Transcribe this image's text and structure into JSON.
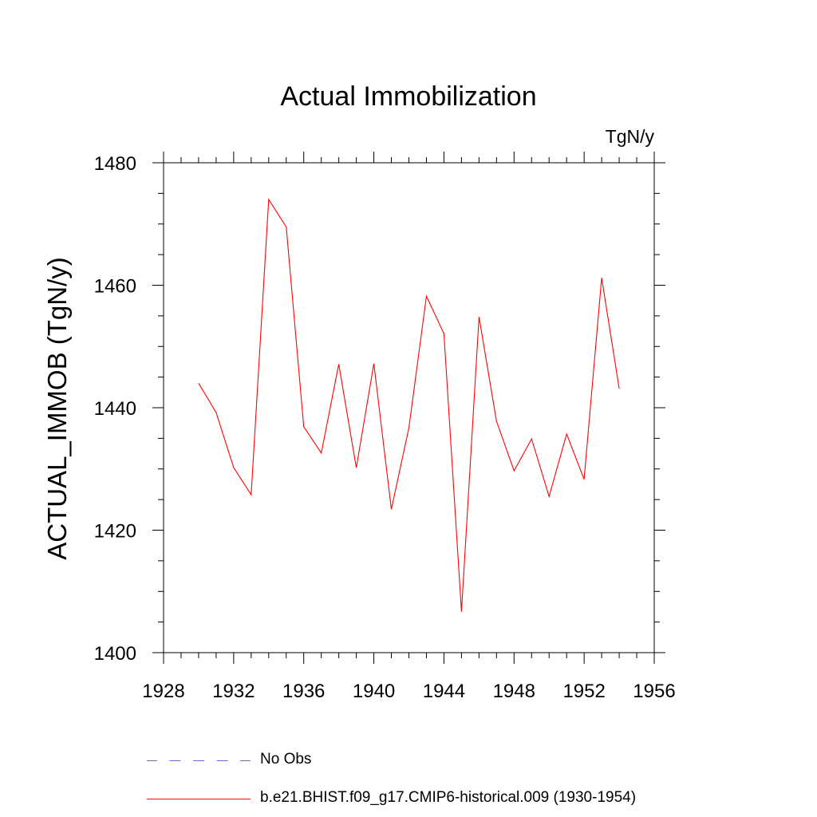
{
  "chart_data": {
    "type": "line",
    "title": "Actual Immobilization",
    "units": "TgN/y",
    "ylabel": "ACTUAL_IMMOB  (TgN/y)",
    "xlabel": "",
    "xlim": [
      1928,
      1956
    ],
    "ylim": [
      1400,
      1480
    ],
    "x_ticks": [
      1928,
      1932,
      1936,
      1940,
      1944,
      1948,
      1952,
      1956
    ],
    "y_ticks": [
      1400,
      1420,
      1440,
      1460,
      1480
    ],
    "grid": false,
    "legend_placement": "bottom",
    "series": [
      {
        "name": "b.e21.BHIST.f09_g17.CMIP6-historical.009 (1930-1954)",
        "color": "#ff0000",
        "style": "solid",
        "x": [
          1930,
          1931,
          1932,
          1933,
          1934,
          1935,
          1936,
          1937,
          1938,
          1939,
          1940,
          1941,
          1942,
          1943,
          1944,
          1945,
          1946,
          1947,
          1948,
          1949,
          1950,
          1951,
          1952,
          1953,
          1954
        ],
        "y": [
          1444.0,
          1439.2,
          1430.2,
          1425.8,
          1474.0,
          1469.5,
          1436.9,
          1432.6,
          1447.1,
          1430.2,
          1447.2,
          1423.4,
          1436.7,
          1458.2,
          1452.1,
          1406.7,
          1454.8,
          1437.8,
          1429.7,
          1434.9,
          1425.5,
          1435.7,
          1428.3,
          1461.2,
          1443.1
        ]
      }
    ],
    "legend": [
      {
        "label": "No Obs",
        "color": "#6a6ad0",
        "style": "dashed"
      },
      {
        "label": "b.e21.BHIST.f09_g17.CMIP6-historical.009 (1930-1954)",
        "color": "#ff0000",
        "style": "solid"
      }
    ]
  }
}
